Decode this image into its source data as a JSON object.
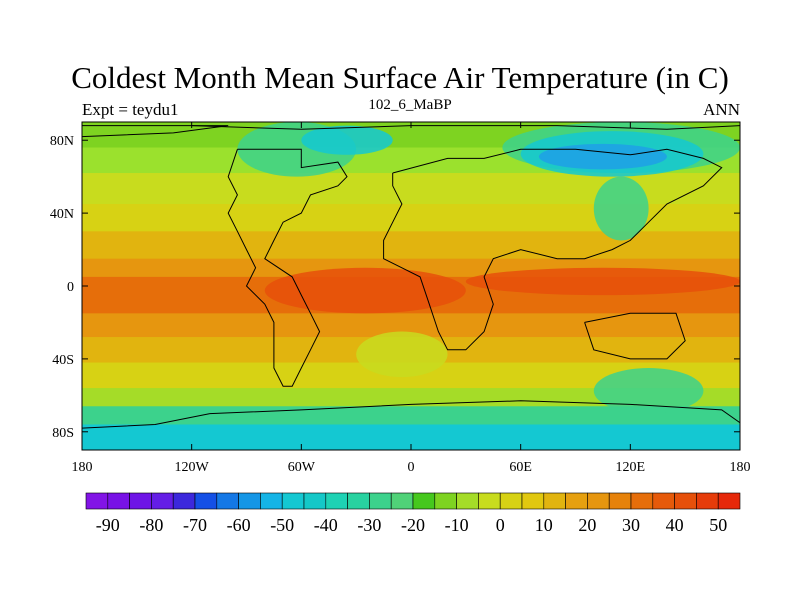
{
  "title": "Coldest Month Mean Surface Air Temperature (in C)",
  "subtitle_left": "Expt = teydu1",
  "subtitle_center": "102_6_MaBP",
  "subtitle_right": "ANN",
  "map": {
    "lon_ticks": [
      "180",
      "120W",
      "60W",
      "0",
      "60E",
      "120E",
      "180"
    ],
    "lat_ticks": [
      "80N",
      "40N",
      "0",
      "40S",
      "80S"
    ],
    "lat_values": [
      80,
      40,
      0,
      -40,
      -80
    ],
    "lon_values": [
      -180,
      -120,
      -60,
      0,
      60,
      120,
      180
    ],
    "lat_range": [
      -90,
      90
    ],
    "lon_range": [
      -180,
      180
    ],
    "bands": [
      {
        "lat": [
          90,
          76
        ],
        "color": "#7ed321"
      },
      {
        "lat": [
          76,
          62
        ],
        "color": "#9be12d"
      },
      {
        "lat": [
          62,
          45
        ],
        "color": "#c8dc1e"
      },
      {
        "lat": [
          45,
          30
        ],
        "color": "#d7d214"
      },
      {
        "lat": [
          30,
          15
        ],
        "color": "#e1b40f"
      },
      {
        "lat": [
          15,
          5
        ],
        "color": "#e6960f"
      },
      {
        "lat": [
          5,
          -15
        ],
        "color": "#e66e0a"
      },
      {
        "lat": [
          -15,
          -28
        ],
        "color": "#e6960f"
      },
      {
        "lat": [
          -28,
          -42
        ],
        "color": "#e1b40f"
      },
      {
        "lat": [
          -42,
          -56
        ],
        "color": "#d7d214"
      },
      {
        "lat": [
          -56,
          -66
        ],
        "color": "#a5dc28"
      },
      {
        "lat": [
          -66,
          -76
        ],
        "color": "#3cd28c"
      },
      {
        "lat": [
          -76,
          -90
        ],
        "color": "#14c8d2"
      }
    ],
    "patches": [
      {
        "lon": [
          -95,
          -30
        ],
        "lat": [
          90,
          60
        ],
        "color": "#3cd28c"
      },
      {
        "lon": [
          -60,
          -10
        ],
        "lat": [
          88,
          72
        ],
        "color": "#14c8d2"
      },
      {
        "lon": [
          50,
          180
        ],
        "lat": [
          90,
          62
        ],
        "color": "#3cd28c"
      },
      {
        "lon": [
          60,
          160
        ],
        "lat": [
          85,
          60
        ],
        "color": "#14c8d2"
      },
      {
        "lon": [
          70,
          140
        ],
        "lat": [
          78,
          64
        ],
        "color": "#1ea0e6"
      },
      {
        "lon": [
          100,
          130
        ],
        "lat": [
          60,
          25
        ],
        "color": "#3cd28c"
      },
      {
        "lon": [
          -80,
          30
        ],
        "lat": [
          10,
          -15
        ],
        "color": "#e6500a"
      },
      {
        "lon": [
          30,
          180
        ],
        "lat": [
          10,
          -5
        ],
        "color": "#e6500a"
      },
      {
        "lon": [
          -30,
          20
        ],
        "lat": [
          -25,
          -50
        ],
        "color": "#c8dc1e"
      },
      {
        "lon": [
          100,
          160
        ],
        "lat": [
          -45,
          -70
        ],
        "color": "#3cd28c"
      }
    ],
    "coastlines": [
      [
        [
          -95,
          75
        ],
        [
          -60,
          75
        ],
        [
          -60,
          65
        ],
        [
          -40,
          68
        ],
        [
          -35,
          60
        ],
        [
          -40,
          55
        ],
        [
          -55,
          50
        ],
        [
          -60,
          40
        ],
        [
          -70,
          35
        ],
        [
          -75,
          25
        ],
        [
          -80,
          15
        ],
        [
          -65,
          5
        ],
        [
          -60,
          -5
        ],
        [
          -55,
          -15
        ],
        [
          -50,
          -25
        ],
        [
          -55,
          -35
        ],
        [
          -60,
          -45
        ],
        [
          -65,
          -55
        ],
        [
          -70,
          -55
        ],
        [
          -75,
          -45
        ],
        [
          -75,
          -20
        ],
        [
          -80,
          -10
        ],
        [
          -90,
          0
        ],
        [
          -85,
          10
        ],
        [
          -90,
          20
        ],
        [
          -95,
          30
        ],
        [
          -100,
          40
        ],
        [
          -95,
          50
        ],
        [
          -100,
          60
        ],
        [
          -95,
          75
        ]
      ],
      [
        [
          -10,
          62
        ],
        [
          20,
          70
        ],
        [
          40,
          70
        ],
        [
          60,
          75
        ],
        [
          90,
          75
        ],
        [
          120,
          72
        ],
        [
          140,
          75
        ],
        [
          160,
          70
        ],
        [
          170,
          65
        ],
        [
          160,
          55
        ],
        [
          140,
          45
        ],
        [
          130,
          35
        ],
        [
          120,
          25
        ],
        [
          110,
          20
        ],
        [
          95,
          15
        ],
        [
          80,
          15
        ],
        [
          60,
          20
        ],
        [
          45,
          15
        ],
        [
          40,
          5
        ],
        [
          45,
          -10
        ],
        [
          40,
          -25
        ],
        [
          30,
          -35
        ],
        [
          20,
          -35
        ],
        [
          15,
          -25
        ],
        [
          10,
          -10
        ],
        [
          5,
          5
        ],
        [
          -5,
          10
        ],
        [
          -15,
          15
        ],
        [
          -15,
          25
        ],
        [
          -10,
          35
        ],
        [
          -5,
          45
        ],
        [
          -10,
          55
        ],
        [
          -10,
          62
        ]
      ],
      [
        [
          95,
          -20
        ],
        [
          120,
          -15
        ],
        [
          145,
          -15
        ],
        [
          150,
          -30
        ],
        [
          140,
          -40
        ],
        [
          120,
          -40
        ],
        [
          100,
          -35
        ],
        [
          95,
          -20
        ]
      ],
      [
        [
          -110,
          -70
        ],
        [
          -60,
          -68
        ],
        [
          0,
          -65
        ],
        [
          60,
          -63
        ],
        [
          120,
          -65
        ],
        [
          170,
          -68
        ],
        [
          180,
          -75
        ],
        [
          180,
          -90
        ],
        [
          -180,
          -90
        ],
        [
          -180,
          -78
        ],
        [
          -140,
          -76
        ],
        [
          -110,
          -70
        ]
      ],
      [
        [
          -180,
          82
        ],
        [
          -130,
          84
        ],
        [
          -100,
          88
        ],
        [
          -180,
          88
        ],
        [
          -180,
          82
        ]
      ],
      [
        [
          -120,
          88
        ],
        [
          -60,
          86
        ],
        [
          0,
          88
        ],
        [
          80,
          88
        ],
        [
          140,
          86
        ],
        [
          180,
          88
        ]
      ]
    ]
  },
  "colorbar": {
    "labels": [
      "-90",
      "-80",
      "-70",
      "-60",
      "-50",
      "-40",
      "-30",
      "-20",
      "-10",
      "0",
      "10",
      "20",
      "30",
      "40",
      "50"
    ],
    "colors": [
      "#8214e6",
      "#7812e6",
      "#6e14e6",
      "#641ee6",
      "#3c28dc",
      "#1450e6",
      "#1478e6",
      "#1496e6",
      "#14b4e6",
      "#14c8d2",
      "#14c8c8",
      "#1ed2b4",
      "#28d2a0",
      "#3cd28c",
      "#50d278",
      "#46c81e",
      "#7ed321",
      "#a5dc28",
      "#c8dc1e",
      "#d7d214",
      "#e1c80f",
      "#e1b40f",
      "#e6a00f",
      "#e6960f",
      "#e6820a",
      "#e66e0a",
      "#e65a0a",
      "#e6500a",
      "#e63c0a",
      "#e6280a"
    ]
  }
}
